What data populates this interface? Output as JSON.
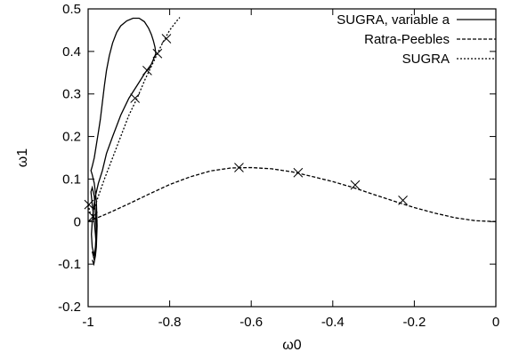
{
  "chart_data": {
    "type": "line",
    "title": "",
    "xlabel": "ω0",
    "ylabel": "ω1",
    "xlim": [
      -1,
      0
    ],
    "ylim": [
      -0.2,
      0.5
    ],
    "xticks": [
      -1,
      -0.8,
      -0.6,
      -0.4,
      -0.2,
      0
    ],
    "xtick_labels": [
      "-1",
      "-0.8",
      "-0.6",
      "-0.4",
      "-0.2",
      "0"
    ],
    "yticks": [
      -0.2,
      -0.1,
      0,
      0.1,
      0.2,
      0.3,
      0.4,
      0.5
    ],
    "ytick_labels": [
      "-0.2",
      "-0.1",
      "0",
      "0.1",
      "0.2",
      "0.3",
      "0.4",
      "0.5"
    ],
    "grid": false,
    "legend_position": "top-right",
    "series": [
      {
        "name": "SUGRA, variable a",
        "style": "solid",
        "color": "#000000",
        "x": [
          -0.99,
          -0.985,
          -0.98,
          -0.978,
          -0.98,
          -0.985,
          -0.99,
          -0.993,
          -0.99,
          -0.985,
          -0.98,
          -0.975,
          -0.97,
          -0.965,
          -0.96,
          -0.955,
          -0.948,
          -0.94,
          -0.93,
          -0.92,
          -0.905,
          -0.89,
          -0.875,
          -0.862,
          -0.852,
          -0.845,
          -0.84,
          -0.836,
          -0.834,
          -0.836,
          -0.845,
          -0.86,
          -0.88,
          -0.9,
          -0.92,
          -0.94,
          -0.955,
          -0.965,
          -0.975,
          -0.982,
          -0.987,
          -0.99,
          -0.992,
          -0.99,
          -0.985,
          -0.982,
          -0.98,
          -0.982,
          -0.985,
          -0.99,
          -0.993,
          -0.99,
          -0.985,
          -0.982,
          -0.98,
          -0.982,
          -0.986,
          -0.99
        ],
        "y": [
          -0.07,
          -0.09,
          -0.06,
          -0.01,
          0.05,
          0.09,
          0.11,
          0.12,
          0.13,
          0.15,
          0.18,
          0.21,
          0.24,
          0.28,
          0.32,
          0.355,
          0.39,
          0.42,
          0.445,
          0.46,
          0.472,
          0.478,
          0.478,
          0.47,
          0.455,
          0.44,
          0.425,
          0.41,
          0.395,
          0.39,
          0.37,
          0.35,
          0.32,
          0.29,
          0.25,
          0.2,
          0.16,
          0.12,
          0.09,
          0.06,
          0.03,
          0.0,
          -0.03,
          -0.06,
          -0.08,
          -0.06,
          -0.02,
          0.02,
          0.06,
          0.08,
          0.07,
          0.04,
          0.0,
          -0.03,
          -0.06,
          -0.08,
          -0.1,
          -0.09
        ],
        "markers_x": [
          -0.83
        ],
        "markers_y": [
          0.395
        ]
      },
      {
        "name": "Ratra-Peebles",
        "style": "dashed",
        "color": "#000000",
        "x": [
          -1.0,
          -0.98,
          -0.95,
          -0.9,
          -0.85,
          -0.8,
          -0.75,
          -0.7,
          -0.65,
          -0.6,
          -0.55,
          -0.5,
          -0.45,
          -0.4,
          -0.35,
          -0.3,
          -0.25,
          -0.2,
          -0.15,
          -0.1,
          -0.05,
          0.0
        ],
        "y": [
          0.0,
          0.008,
          0.02,
          0.042,
          0.065,
          0.087,
          0.105,
          0.119,
          0.126,
          0.127,
          0.124,
          0.117,
          0.106,
          0.094,
          0.08,
          0.064,
          0.048,
          0.033,
          0.02,
          0.009,
          0.002,
          0.0
        ],
        "markers_x": [
          -0.63,
          -0.485,
          -0.345,
          -0.228
        ],
        "markers_y": [
          0.127,
          0.115,
          0.086,
          0.05
        ]
      },
      {
        "name": "SUGRA",
        "style": "dotted",
        "color": "#000000",
        "x": [
          -1.0,
          -0.995,
          -0.99,
          -0.985,
          -0.975,
          -0.96,
          -0.94,
          -0.92,
          -0.9,
          -0.88,
          -0.86,
          -0.84,
          -0.82,
          -0.8,
          -0.78,
          -0.775
        ],
        "y": [
          0.04,
          0.02,
          0.015,
          0.03,
          0.06,
          0.1,
          0.15,
          0.2,
          0.25,
          0.29,
          0.335,
          0.375,
          0.415,
          0.45,
          0.475,
          0.48
        ],
        "markers_x": [
          -0.998,
          -0.988,
          -0.885,
          -0.855,
          -0.808
        ],
        "markers_y": [
          0.04,
          0.012,
          0.29,
          0.355,
          0.43
        ]
      }
    ]
  }
}
